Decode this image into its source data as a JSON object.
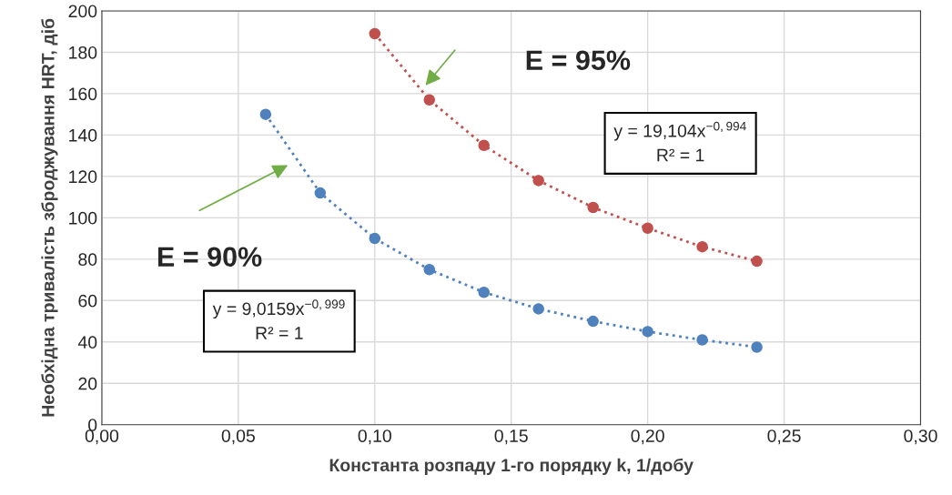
{
  "chart_data": {
    "type": "line",
    "xlabel": "Константа розпаду 1-го порядку k, 1/добу",
    "ylabel": "Необхідна тривалість зброджування HRT, діб",
    "series": [
      {
        "color": "#4f81bd",
        "x": [
          0.06,
          0.08,
          0.1,
          0.12,
          0.14,
          0.16,
          0.18,
          0.2,
          0.22,
          0.24
        ],
        "values": [
          150,
          112,
          90,
          75,
          64,
          56,
          50,
          45,
          41,
          37.5
        ]
      },
      {
        "color": "#c0504d",
        "x": [
          0.1,
          0.12,
          0.14,
          0.16,
          0.18,
          0.2,
          0.22,
          0.24
        ],
        "values": [
          189,
          157,
          135,
          118,
          105,
          95,
          86,
          79
        ]
      }
    ],
    "marker": "circle",
    "line_style": "dotted",
    "xlim": [
      0,
      0.3
    ],
    "xticks": [
      {
        "value": 0,
        "label": "0,00"
      },
      {
        "value": 0.05,
        "label": "0,05"
      },
      {
        "value": 0.1,
        "label": "0,10"
      },
      {
        "value": 0.15,
        "label": "0,15"
      },
      {
        "value": 0.2,
        "label": "0,20"
      },
      {
        "value": 0.25,
        "label": "0,25"
      },
      {
        "value": 0.3,
        "label": "0,30"
      }
    ],
    "ylim": [
      0,
      200
    ],
    "yticks": [
      0,
      20,
      40,
      60,
      80,
      100,
      120,
      140,
      160,
      180,
      200
    ],
    "grid": true,
    "annotations": [
      "E = 95%",
      "E = 90%",
      "y = 19,104x$^{−0,994}$\nR² = 1",
      "y = 9,0159x$^{−0,999}$\nR² = 1"
    ]
  }
}
